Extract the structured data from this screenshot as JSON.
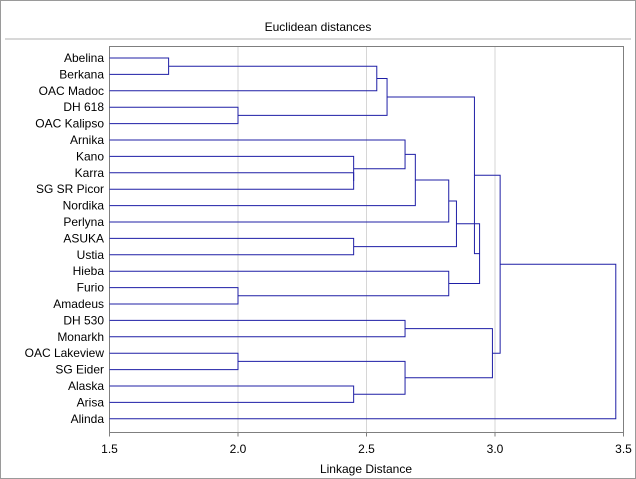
{
  "chart_data": {
    "type": "dendrogram",
    "title": "Euclidean distances",
    "xlabel": "Linkage Distance",
    "xlim": [
      1.5,
      3.5
    ],
    "xticks": [
      "1.5",
      "2.0",
      "2.5",
      "3.0",
      "3.5"
    ],
    "xtick_values": [
      1.5,
      2.0,
      2.5,
      3.0,
      3.5
    ],
    "grid": "vertical",
    "line_color": "#1f1fa6",
    "leaves": [
      "Abelina",
      "Berkana",
      "OAC Madoc",
      "DH 618",
      "OAC Kalipso",
      "Arnika",
      "Kano",
      "Karra",
      "SG SR Picor",
      "Nordika",
      "Perlyna",
      "ASUKA",
      "Ustia",
      "Hieba",
      "Furio",
      "Amadeus",
      "DH 530",
      "Monarkh",
      "OAC Lakeview",
      "SG Eider",
      "Alaska",
      "Arisa",
      "Alinda"
    ],
    "merges": [
      {
        "id": "m1",
        "a": "Abelina",
        "b": "Berkana",
        "height": 1.73
      },
      {
        "id": "m2",
        "a": "DH 618",
        "b": "OAC Kalipso",
        "height": 2.0
      },
      {
        "id": "m3",
        "a": "m1",
        "b": "OAC Madoc",
        "height": 2.54
      },
      {
        "id": "m4",
        "a": "m3",
        "b": "m2",
        "height": 2.58
      },
      {
        "id": "m5",
        "a": "Karra",
        "b": "SG SR Picor",
        "height": 2.45
      },
      {
        "id": "m6",
        "a": "Kano",
        "b": "m5",
        "height": 2.45
      },
      {
        "id": "m7",
        "a": "Arnika",
        "b": "m6",
        "height": 2.65
      },
      {
        "id": "m8",
        "a": "m7",
        "b": "Nordika",
        "height": 2.69
      },
      {
        "id": "m9",
        "a": "m8",
        "b": "Perlyna",
        "height": 2.82
      },
      {
        "id": "m10",
        "a": "ASUKA",
        "b": "Ustia",
        "height": 2.45
      },
      {
        "id": "m11",
        "a": "m9",
        "b": "m10",
        "height": 2.85
      },
      {
        "id": "m12",
        "a": "Furio",
        "b": "Amadeus",
        "height": 2.0
      },
      {
        "id": "m13",
        "a": "Hieba",
        "b": "m12",
        "height": 2.82
      },
      {
        "id": "m14",
        "a": "m11",
        "b": "m13",
        "height": 2.94
      },
      {
        "id": "m15",
        "a": "m4",
        "b": "m14",
        "height": 2.92
      },
      {
        "id": "m16",
        "a": "DH 530",
        "b": "Monarkh",
        "height": 2.65
      },
      {
        "id": "m17",
        "a": "OAC Lakeview",
        "b": "SG Eider",
        "height": 2.0
      },
      {
        "id": "m18",
        "a": "Alaska",
        "b": "Arisa",
        "height": 2.45
      },
      {
        "id": "m19",
        "a": "m17",
        "b": "m18",
        "height": 2.65
      },
      {
        "id": "m20",
        "a": "m16",
        "b": "m19",
        "height": 2.99
      },
      {
        "id": "m21",
        "a": "m15",
        "b": "m20",
        "height": 3.02
      },
      {
        "id": "m22",
        "a": "m21",
        "b": "Alinda",
        "height": 3.47
      }
    ]
  }
}
